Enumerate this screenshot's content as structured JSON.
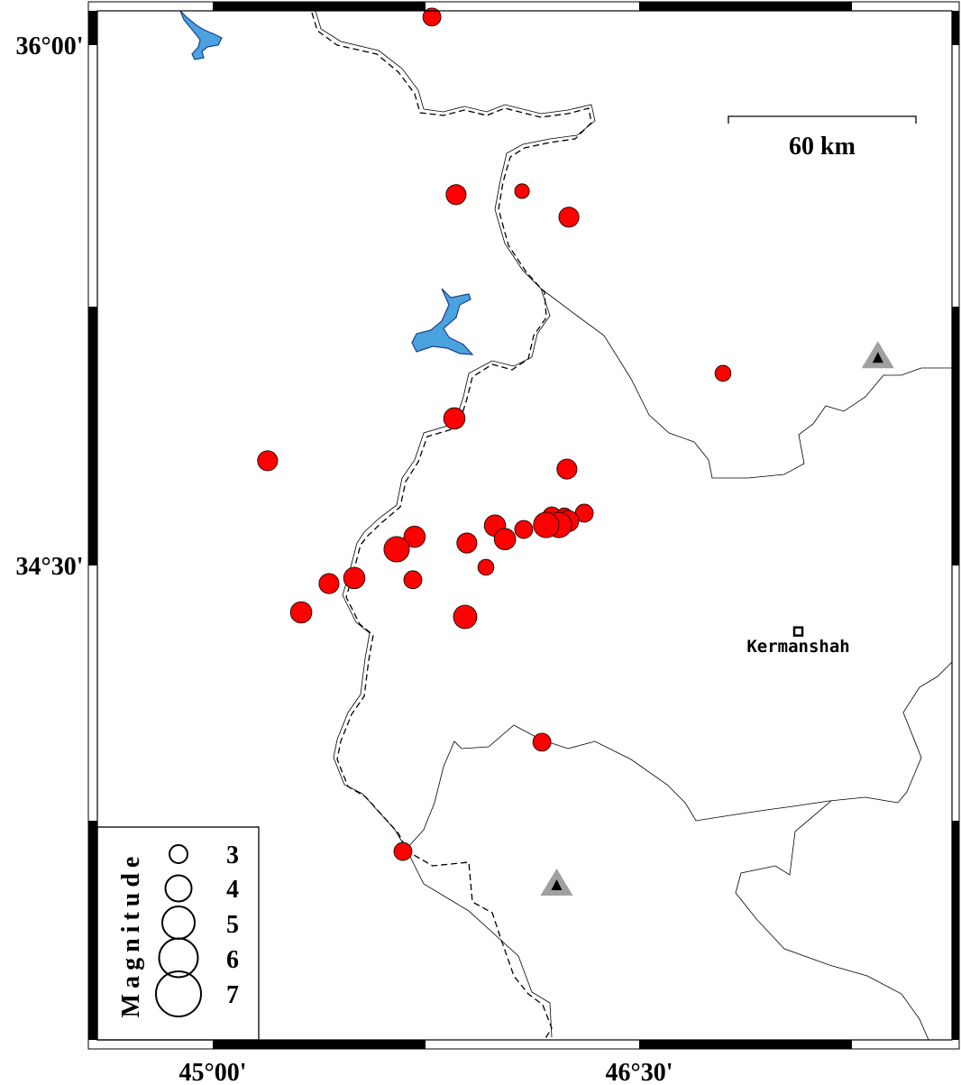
{
  "map": {
    "axes": {
      "lat_labels": [
        "36°00'",
        "34°30'"
      ],
      "lon_labels": [
        "45°00'",
        "46°30'"
      ]
    },
    "scale_bar": {
      "label": "60 km"
    },
    "cities": [
      {
        "name": "Kermanshah",
        "lon": 47.06,
        "lat": 34.31
      }
    ],
    "stations": [
      {
        "lon": 47.34,
        "lat": 35.1
      },
      {
        "lon": 46.21,
        "lat": 33.58
      }
    ],
    "colors": {
      "event": "#ff0000",
      "lake": "#4aa3df",
      "station": "#a0a0a0"
    },
    "legend": {
      "title": "Magnitude",
      "items": [
        "3",
        "4",
        "5",
        "6",
        "7"
      ]
    },
    "events": [
      {
        "lon": 45.771,
        "lat": 36.081,
        "mag": 3.0
      },
      {
        "lon": 45.856,
        "lat": 35.569,
        "mag": 3.3
      },
      {
        "lon": 46.088,
        "lat": 35.579,
        "mag": 2.5
      },
      {
        "lon": 46.253,
        "lat": 35.504,
        "mag": 3.3
      },
      {
        "lon": 46.795,
        "lat": 35.054,
        "mag": 2.7
      },
      {
        "lon": 45.85,
        "lat": 34.924,
        "mag": 3.5
      },
      {
        "lon": 45.193,
        "lat": 34.802,
        "mag": 3.3
      },
      {
        "lon": 46.246,
        "lat": 34.778,
        "mag": 3.3
      },
      {
        "lon": 45.71,
        "lat": 34.583,
        "mag": 3.5
      },
      {
        "lon": 45.647,
        "lat": 34.547,
        "mag": 4.1
      },
      {
        "lon": 45.894,
        "lat": 34.565,
        "mag": 3.3
      },
      {
        "lon": 45.993,
        "lat": 34.615,
        "mag": 3.5
      },
      {
        "lon": 46.028,
        "lat": 34.576,
        "mag": 3.5
      },
      {
        "lon": 46.094,
        "lat": 34.604,
        "mag": 3.0
      },
      {
        "lon": 46.193,
        "lat": 34.643,
        "mag": 3.0
      },
      {
        "lon": 46.237,
        "lat": 34.643,
        "mag": 2.7
      },
      {
        "lon": 46.307,
        "lat": 34.651,
        "mag": 3.0
      },
      {
        "lon": 46.25,
        "lat": 34.628,
        "mag": 3.5
      },
      {
        "lon": 46.218,
        "lat": 34.617,
        "mag": 4.1
      },
      {
        "lon": 46.173,
        "lat": 34.617,
        "mag": 4.1
      },
      {
        "lon": 45.961,
        "lat": 34.495,
        "mag": 2.7
      },
      {
        "lon": 45.704,
        "lat": 34.459,
        "mag": 3.0
      },
      {
        "lon": 45.498,
        "lat": 34.464,
        "mag": 3.5
      },
      {
        "lon": 45.409,
        "lat": 34.448,
        "mag": 3.3
      },
      {
        "lon": 45.311,
        "lat": 34.365,
        "mag": 3.5
      },
      {
        "lon": 45.888,
        "lat": 34.352,
        "mag": 3.8
      },
      {
        "lon": 46.158,
        "lat": 33.991,
        "mag": 3.0
      },
      {
        "lon": 45.669,
        "lat": 33.676,
        "mag": 3.0
      }
    ]
  }
}
